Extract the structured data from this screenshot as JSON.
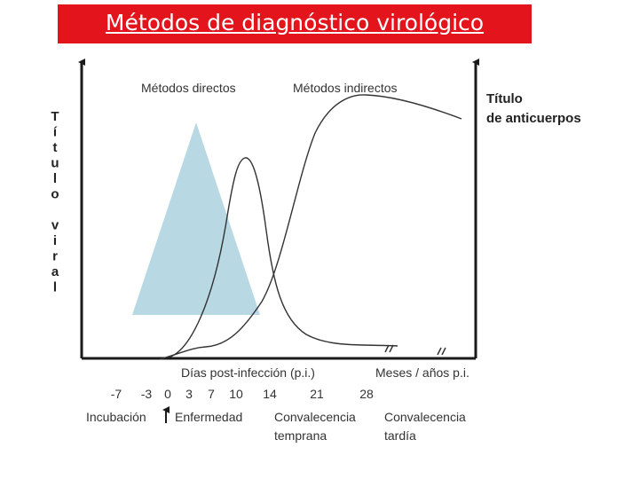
{
  "title": "Métodos de diagnóstico virológico",
  "colors": {
    "title_bg": "#e3141b",
    "title_text": "#ffffff",
    "triangle": "#b8d8e4",
    "axis": "#1a1a1a"
  },
  "labels": {
    "direct_methods": "Métodos directos",
    "indirect_methods": "Métodos indirectos",
    "antibody_titer_line1": "Título",
    "antibody_titer_line2": "de anticuerpos",
    "viral_titer_letters": [
      "T",
      "í",
      "t",
      "u",
      "l",
      "o",
      "",
      "v",
      "i",
      "r",
      "a",
      "l"
    ],
    "x_axis_days": "Días post-infección (p.i.)",
    "x_axis_months": "Meses / años p.i."
  },
  "ticks": [
    "-7",
    "-3",
    "0",
    "3",
    "7",
    "10",
    "14",
    "21",
    "28"
  ],
  "phases": {
    "incubation": "Incubación",
    "illness": "Enfermedad",
    "early_convalescence_line1": "Convalecencia",
    "early_convalescence_line2": "temprana",
    "late_convalescence_line1": "Convalecencia",
    "late_convalescence_line2": "tardía"
  }
}
